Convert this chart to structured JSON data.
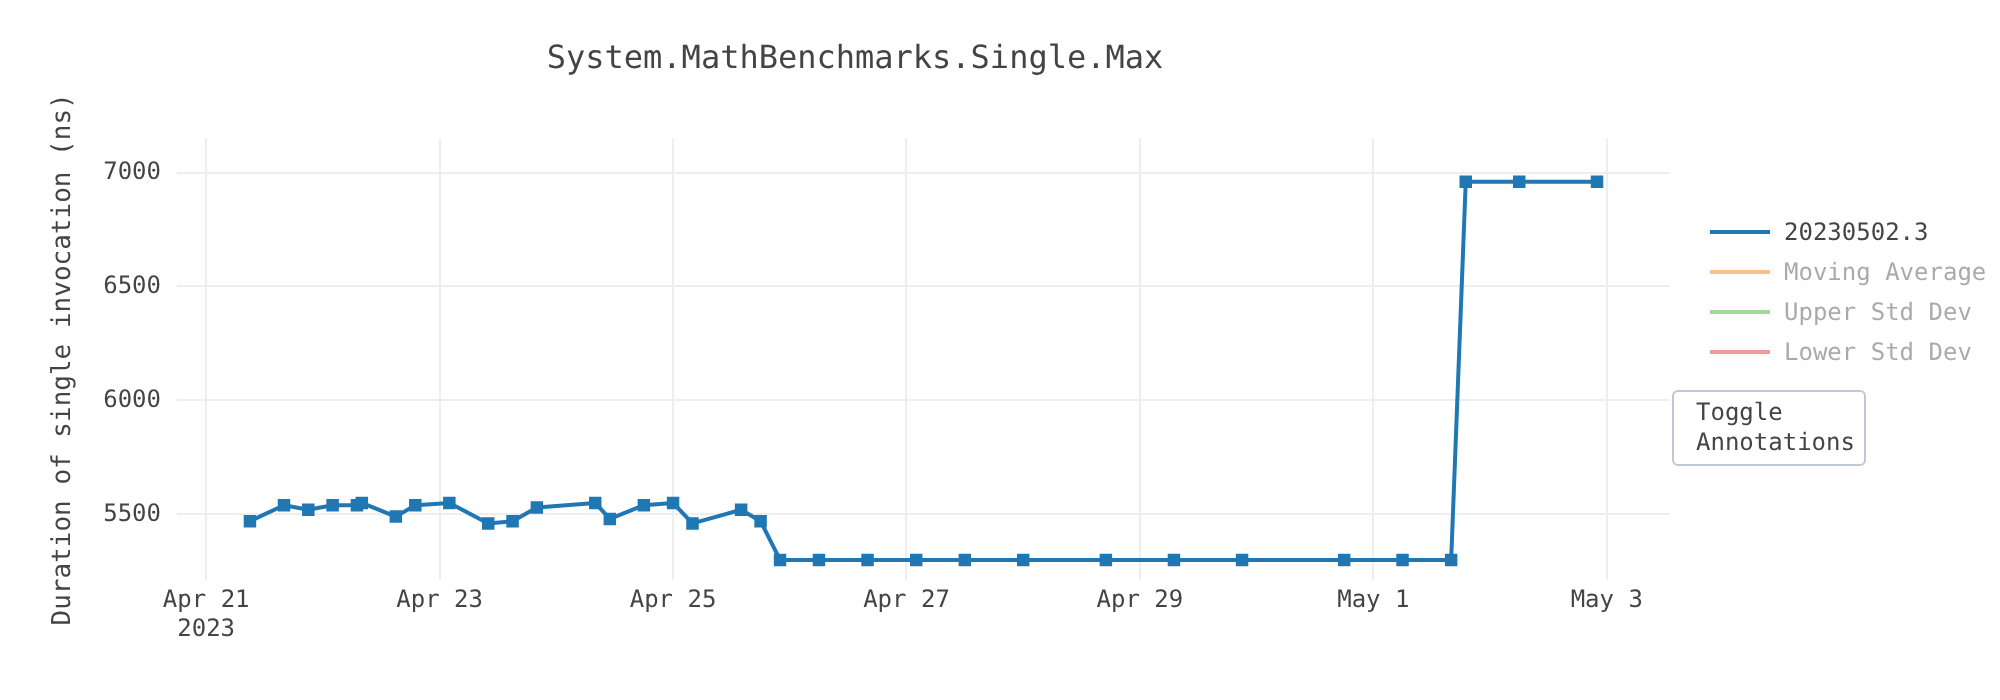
{
  "chart_data": {
    "type": "line",
    "title": "System.MathBenchmarks.Single.Max",
    "ylabel": "Duration of single invocation (ns)",
    "x": [
      "2023-04-21T09:00",
      "2023-04-21T16:00",
      "2023-04-21T21:00",
      "2023-04-22T02:00",
      "2023-04-22T07:00",
      "2023-04-22T08:00",
      "2023-04-22T15:00",
      "2023-04-22T19:00",
      "2023-04-23T02:00",
      "2023-04-23T10:00",
      "2023-04-23T15:00",
      "2023-04-23T20:00",
      "2023-04-24T08:00",
      "2023-04-24T11:00",
      "2023-04-24T18:00",
      "2023-04-25T00:00",
      "2023-04-25T04:00",
      "2023-04-25T14:00",
      "2023-04-25T18:00",
      "2023-04-25T22:00",
      "2023-04-26T06:00",
      "2023-04-26T16:00",
      "2023-04-27T02:00",
      "2023-04-27T12:00",
      "2023-04-28T00:00",
      "2023-04-28T17:00",
      "2023-04-29T07:00",
      "2023-04-29T21:00",
      "2023-04-30T18:00",
      "2023-05-01T06:00",
      "2023-05-01T16:00",
      "2023-05-01T19:00",
      "2023-05-02T06:00",
      "2023-05-02T22:00"
    ],
    "series": [
      {
        "name": "20230502.3",
        "color": "#1f77b4",
        "values": [
          5470,
          5540,
          5520,
          5540,
          5540,
          5550,
          5490,
          5540,
          5550,
          5460,
          5470,
          5530,
          5550,
          5480,
          5540,
          5550,
          5460,
          5520,
          5470,
          5300,
          5300,
          5300,
          5300,
          5300,
          5300,
          5300,
          5300,
          5300,
          5300,
          5300,
          5300,
          6960,
          6960,
          6960
        ]
      },
      {
        "name": "Moving Average",
        "color": "#fdbf8a",
        "values": [
          null,
          null,
          null,
          null,
          null,
          null,
          null,
          null,
          null,
          null,
          null,
          null,
          null,
          null,
          null,
          null,
          null,
          null,
          null,
          null,
          null,
          null,
          null,
          null,
          null,
          null,
          null,
          null,
          null,
          null,
          null,
          null,
          null,
          null
        ]
      },
      {
        "name": "Upper Std Dev",
        "color": "#a3d99c",
        "values": [
          null,
          null,
          null,
          null,
          null,
          null,
          null,
          null,
          null,
          null,
          null,
          null,
          null,
          null,
          null,
          null,
          null,
          null,
          null,
          null,
          null,
          null,
          null,
          null,
          null,
          null,
          null,
          null,
          null,
          null,
          null,
          null,
          null,
          null
        ]
      },
      {
        "name": "Lower Std Dev",
        "color": "#f09a9a",
        "values": [
          null,
          null,
          null,
          null,
          null,
          null,
          null,
          null,
          null,
          null,
          null,
          null,
          null,
          null,
          null,
          null,
          null,
          null,
          null,
          null,
          null,
          null,
          null,
          null,
          null,
          null,
          null,
          null,
          null,
          null,
          null,
          null,
          null,
          null
        ]
      }
    ],
    "xlim": [
      "2023-04-20T18:00",
      "2023-05-03T13:00"
    ],
    "xticks": [
      {
        "value": "2023-04-21",
        "label": "Apr 21\n2023"
      },
      {
        "value": "2023-04-23",
        "label": "Apr 23"
      },
      {
        "value": "2023-04-25",
        "label": "Apr 25"
      },
      {
        "value": "2023-04-27",
        "label": "Apr 27"
      },
      {
        "value": "2023-04-29",
        "label": "Apr 29"
      },
      {
        "value": "2023-05-01",
        "label": "May 1"
      },
      {
        "value": "2023-05-03",
        "label": "May 3"
      }
    ],
    "ylim": [
      5210,
      7150
    ],
    "yticks": [
      5500,
      6000,
      6500,
      7000
    ],
    "grid": true,
    "legend": "top right",
    "marker": "square",
    "line_style": "solid",
    "annotations": [
      "Toggle Annotations"
    ]
  }
}
